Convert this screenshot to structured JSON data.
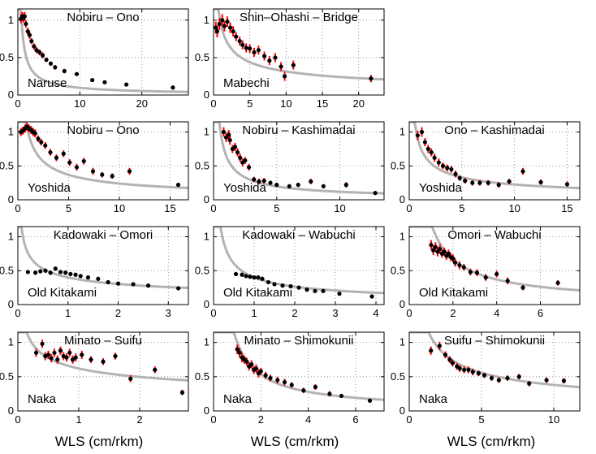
{
  "figure": {
    "xlabel_text": "WLS (cm/rkm)",
    "colors": {
      "point": "#000000",
      "errorbar": "#ff0000",
      "fit": "#b3b3b3",
      "grid": "#7f7f7f",
      "frame": "#000000"
    }
  },
  "chart_data": [
    {
      "type": "scatter",
      "title": "Nobiru – Ono",
      "river": "Naruse",
      "xlim": [
        0,
        27.5
      ],
      "ylim": [
        0,
        1.15
      ],
      "xticks": [
        0,
        10,
        20
      ],
      "yticks": [
        0,
        0.5,
        1
      ],
      "fit_k": 0.65,
      "fit_p": 0.83,
      "points": [
        [
          0.5,
          1.02,
          0.06
        ],
        [
          0.7,
          1.05,
          0.06
        ],
        [
          0.9,
          1.03,
          0.06
        ],
        [
          1.1,
          1.05,
          0.06
        ],
        [
          1.3,
          0.95,
          0.05
        ],
        [
          1.6,
          0.85,
          0.05
        ],
        [
          1.9,
          0.8,
          0.05
        ],
        [
          2.2,
          0.72,
          0.04
        ],
        [
          2.6,
          0.65,
          0.04
        ],
        [
          3.0,
          0.6,
          0.04
        ],
        [
          3.5,
          0.57,
          0.04
        ],
        [
          4.0,
          0.53,
          0.04
        ],
        [
          4.6,
          0.47,
          0.03
        ],
        [
          5.3,
          0.42,
          0.03
        ],
        [
          6.0,
          0.37,
          0.03
        ],
        [
          7.5,
          0.32,
          0.03
        ],
        [
          9.5,
          0.28,
          0.02
        ],
        [
          12.0,
          0.2,
          0.02
        ],
        [
          14.0,
          0.17,
          0.02
        ],
        [
          17.5,
          0.14,
          0.02
        ],
        [
          25.0,
          0.1,
          0.02
        ]
      ]
    },
    {
      "type": "scatter",
      "title": "Shin–Ohashi – Bridge",
      "river": "Mabechi",
      "xlim": [
        0,
        23.5
      ],
      "ylim": [
        0,
        1.15
      ],
      "xticks": [
        0,
        5,
        10,
        15,
        20
      ],
      "yticks": [
        0,
        0.5,
        1
      ],
      "fit_k": 0.95,
      "fit_p": 0.48,
      "points": [
        [
          0.3,
          0.9,
          0.08
        ],
        [
          0.5,
          0.85,
          0.08
        ],
        [
          0.8,
          0.95,
          0.08
        ],
        [
          1.2,
          1.0,
          0.08
        ],
        [
          1.5,
          0.92,
          0.07
        ],
        [
          1.9,
          0.98,
          0.07
        ],
        [
          2.3,
          0.9,
          0.07
        ],
        [
          2.7,
          0.85,
          0.07
        ],
        [
          3.1,
          0.78,
          0.06
        ],
        [
          3.6,
          0.72,
          0.06
        ],
        [
          4.0,
          0.67,
          0.06
        ],
        [
          4.5,
          0.63,
          0.06
        ],
        [
          5.0,
          0.62,
          0.06
        ],
        [
          5.6,
          0.57,
          0.06
        ],
        [
          6.2,
          0.6,
          0.06
        ],
        [
          7.0,
          0.52,
          0.06
        ],
        [
          7.7,
          0.46,
          0.06
        ],
        [
          8.5,
          0.5,
          0.06
        ],
        [
          9.3,
          0.38,
          0.06
        ],
        [
          9.8,
          0.25,
          0.06
        ],
        [
          11.0,
          0.4,
          0.06
        ],
        [
          21.7,
          0.22,
          0.05
        ]
      ]
    },
    {
      "type": "scatter",
      "title": "Nobiru – Ono",
      "river": "Yoshida",
      "xlim": [
        0,
        16.8
      ],
      "ylim": [
        0,
        1.15
      ],
      "xticks": [
        0,
        5,
        10,
        15
      ],
      "yticks": [
        0,
        0.5,
        1
      ],
      "fit_k": 1.0,
      "fit_p": 0.62,
      "points": [
        [
          0.3,
          1.0,
          0.06
        ],
        [
          0.5,
          1.02,
          0.06
        ],
        [
          0.7,
          1.05,
          0.06
        ],
        [
          0.9,
          1.08,
          0.06
        ],
        [
          1.1,
          1.05,
          0.06
        ],
        [
          1.3,
          1.03,
          0.06
        ],
        [
          1.5,
          1.0,
          0.06
        ],
        [
          1.7,
          0.98,
          0.06
        ],
        [
          2.0,
          0.9,
          0.05
        ],
        [
          2.3,
          0.85,
          0.05
        ],
        [
          2.7,
          0.8,
          0.05
        ],
        [
          3.2,
          0.7,
          0.05
        ],
        [
          3.8,
          0.62,
          0.05
        ],
        [
          4.5,
          0.68,
          0.05
        ],
        [
          5.1,
          0.55,
          0.05
        ],
        [
          5.8,
          0.48,
          0.05
        ],
        [
          6.5,
          0.57,
          0.05
        ],
        [
          7.4,
          0.42,
          0.05
        ],
        [
          8.3,
          0.37,
          0.04
        ],
        [
          9.3,
          0.35,
          0.04
        ],
        [
          11.0,
          0.42,
          0.05
        ],
        [
          15.8,
          0.22,
          0.03
        ]
      ]
    },
    {
      "type": "scatter",
      "title": "Nobiru – Kashimadai",
      "river": "Yoshida",
      "xlim": [
        0,
        13.5
      ],
      "ylim": [
        0,
        1.15
      ],
      "xticks": [
        0,
        5,
        10
      ],
      "yticks": [
        0,
        0.5,
        1
      ],
      "fit_k": 0.65,
      "fit_p": 0.74,
      "points": [
        [
          0.8,
          1.0,
          0.07
        ],
        [
          1.0,
          0.92,
          0.07
        ],
        [
          1.2,
          0.96,
          0.07
        ],
        [
          1.3,
          0.88,
          0.07
        ],
        [
          1.5,
          0.75,
          0.06
        ],
        [
          1.7,
          0.78,
          0.06
        ],
        [
          1.9,
          0.7,
          0.06
        ],
        [
          2.1,
          0.62,
          0.06
        ],
        [
          2.3,
          0.55,
          0.06
        ],
        [
          2.5,
          0.58,
          0.05
        ],
        [
          2.8,
          0.48,
          0.05
        ],
        [
          3.2,
          0.3,
          0.04
        ],
        [
          3.6,
          0.27,
          0.04
        ],
        [
          4.0,
          0.28,
          0.04
        ],
        [
          4.5,
          0.25,
          0.03
        ],
        [
          5.0,
          0.22,
          0.03
        ],
        [
          6.0,
          0.2,
          0.03
        ],
        [
          6.7,
          0.22,
          0.03
        ],
        [
          7.7,
          0.27,
          0.04
        ],
        [
          8.7,
          0.2,
          0.03
        ],
        [
          10.5,
          0.22,
          0.04
        ],
        [
          12.8,
          0.1,
          0.02
        ]
      ]
    },
    {
      "type": "scatter",
      "title": "Ono – Kashimadai",
      "river": "Yoshida",
      "xlim": [
        0,
        16.2
      ],
      "ylim": [
        0,
        1.15
      ],
      "xticks": [
        0,
        5,
        10,
        15
      ],
      "yticks": [
        0,
        0.5,
        1
      ],
      "fit_k": 0.8,
      "fit_p": 0.55,
      "points": [
        [
          0.8,
          0.95,
          0.07
        ],
        [
          1.2,
          1.0,
          0.07
        ],
        [
          1.5,
          0.85,
          0.06
        ],
        [
          1.8,
          0.75,
          0.06
        ],
        [
          2.1,
          0.7,
          0.06
        ],
        [
          2.4,
          0.62,
          0.06
        ],
        [
          2.8,
          0.55,
          0.06
        ],
        [
          3.2,
          0.5,
          0.05
        ],
        [
          3.6,
          0.47,
          0.05
        ],
        [
          4.0,
          0.45,
          0.05
        ],
        [
          4.4,
          0.38,
          0.05
        ],
        [
          4.8,
          0.32,
          0.04
        ],
        [
          5.3,
          0.28,
          0.04
        ],
        [
          6.0,
          0.25,
          0.04
        ],
        [
          6.7,
          0.25,
          0.04
        ],
        [
          7.5,
          0.25,
          0.04
        ],
        [
          8.5,
          0.22,
          0.04
        ],
        [
          9.5,
          0.27,
          0.04
        ],
        [
          10.8,
          0.42,
          0.05
        ],
        [
          12.5,
          0.26,
          0.04
        ],
        [
          15.0,
          0.23,
          0.04
        ]
      ]
    },
    {
      "type": "scatter",
      "title": "Kadowaki – Omori",
      "river": "Old Kitakami",
      "xlim": [
        0,
        3.4
      ],
      "ylim": [
        0,
        1.15
      ],
      "xticks": [
        0,
        1,
        2,
        3
      ],
      "yticks": [
        0,
        0.5,
        1
      ],
      "fit_k": 0.4,
      "fit_p": 0.4,
      "points": [
        [
          0.2,
          0.48,
          0.03
        ],
        [
          0.35,
          0.47,
          0.03
        ],
        [
          0.45,
          0.49,
          0.03
        ],
        [
          0.55,
          0.5,
          0.03
        ],
        [
          0.65,
          0.47,
          0.03
        ],
        [
          0.75,
          0.53,
          0.03
        ],
        [
          0.85,
          0.48,
          0.03
        ],
        [
          0.95,
          0.47,
          0.03
        ],
        [
          1.05,
          0.45,
          0.03
        ],
        [
          1.15,
          0.44,
          0.03
        ],
        [
          1.25,
          0.42,
          0.03
        ],
        [
          1.4,
          0.4,
          0.03
        ],
        [
          1.6,
          0.38,
          0.03
        ],
        [
          1.8,
          0.33,
          0.02
        ],
        [
          2.0,
          0.31,
          0.02
        ],
        [
          2.3,
          0.3,
          0.02
        ],
        [
          2.6,
          0.28,
          0.02
        ],
        [
          3.2,
          0.24,
          0.02
        ]
      ]
    },
    {
      "type": "scatter",
      "title": "Kadowaki – Wabuchi",
      "river": "Old Kitakami",
      "xlim": [
        0,
        4.2
      ],
      "ylim": [
        0,
        1.15
      ],
      "xticks": [
        0,
        1,
        2,
        3,
        4
      ],
      "yticks": [
        0,
        0.5,
        1
      ],
      "fit_k": 0.4,
      "fit_p": 0.6,
      "points": [
        [
          0.55,
          0.45,
          0.03
        ],
        [
          0.7,
          0.44,
          0.03
        ],
        [
          0.8,
          0.42,
          0.03
        ],
        [
          0.9,
          0.41,
          0.03
        ],
        [
          1.0,
          0.4,
          0.03
        ],
        [
          1.1,
          0.4,
          0.03
        ],
        [
          1.2,
          0.38,
          0.03
        ],
        [
          1.35,
          0.33,
          0.02
        ],
        [
          1.5,
          0.3,
          0.02
        ],
        [
          1.7,
          0.28,
          0.02
        ],
        [
          1.9,
          0.27,
          0.02
        ],
        [
          2.1,
          0.25,
          0.02
        ],
        [
          2.3,
          0.22,
          0.02
        ],
        [
          2.5,
          0.2,
          0.02
        ],
        [
          2.7,
          0.2,
          0.02
        ],
        [
          3.1,
          0.16,
          0.02
        ],
        [
          3.9,
          0.12,
          0.02
        ]
      ]
    },
    {
      "type": "scatter",
      "title": "Omori – Wabuchi",
      "river": "Old Kitakami",
      "xlim": [
        0,
        7.8
      ],
      "ylim": [
        0,
        1.15
      ],
      "xticks": [
        0,
        2,
        4,
        6
      ],
      "yticks": [
        0,
        0.5,
        1
      ],
      "fit_k": 1.2,
      "fit_p": 0.85,
      "points": [
        [
          1.0,
          0.88,
          0.07
        ],
        [
          1.1,
          0.8,
          0.07
        ],
        [
          1.2,
          0.85,
          0.07
        ],
        [
          1.3,
          0.78,
          0.07
        ],
        [
          1.4,
          0.82,
          0.07
        ],
        [
          1.5,
          0.75,
          0.06
        ],
        [
          1.6,
          0.78,
          0.06
        ],
        [
          1.7,
          0.72,
          0.06
        ],
        [
          1.8,
          0.75,
          0.06
        ],
        [
          1.9,
          0.7,
          0.06
        ],
        [
          2.0,
          0.68,
          0.06
        ],
        [
          2.1,
          0.62,
          0.06
        ],
        [
          2.3,
          0.58,
          0.06
        ],
        [
          2.5,
          0.55,
          0.05
        ],
        [
          2.8,
          0.48,
          0.05
        ],
        [
          3.1,
          0.47,
          0.05
        ],
        [
          3.5,
          0.4,
          0.05
        ],
        [
          4.0,
          0.45,
          0.05
        ],
        [
          4.5,
          0.35,
          0.05
        ],
        [
          5.2,
          0.25,
          0.04
        ],
        [
          6.8,
          0.32,
          0.04
        ]
      ]
    },
    {
      "type": "scatter",
      "title": "Minato – Suifu",
      "river": "Naka",
      "xlim": [
        0,
        2.8
      ],
      "ylim": [
        0,
        1.15
      ],
      "xticks": [
        0,
        1,
        2
      ],
      "yticks": [
        0,
        0.5,
        1
      ],
      "fit_k": 0.62,
      "fit_p": 0.32,
      "points": [
        [
          0.3,
          0.85,
          0.06
        ],
        [
          0.4,
          0.98,
          0.06
        ],
        [
          0.45,
          0.8,
          0.06
        ],
        [
          0.5,
          0.82,
          0.06
        ],
        [
          0.55,
          0.77,
          0.06
        ],
        [
          0.6,
          0.85,
          0.06
        ],
        [
          0.65,
          0.75,
          0.06
        ],
        [
          0.7,
          0.88,
          0.06
        ],
        [
          0.75,
          0.8,
          0.06
        ],
        [
          0.8,
          0.78,
          0.06
        ],
        [
          0.85,
          0.85,
          0.06
        ],
        [
          0.9,
          0.75,
          0.06
        ],
        [
          0.95,
          0.78,
          0.06
        ],
        [
          1.05,
          0.82,
          0.06
        ],
        [
          1.2,
          0.75,
          0.05
        ],
        [
          1.4,
          0.72,
          0.05
        ],
        [
          1.6,
          0.8,
          0.05
        ],
        [
          1.85,
          0.47,
          0.05
        ],
        [
          2.25,
          0.6,
          0.05
        ],
        [
          2.7,
          0.27,
          0.04
        ]
      ]
    },
    {
      "type": "scatter",
      "title": "Minato – Shimokunii",
      "river": "Naka",
      "xlim": [
        0,
        7.2
      ],
      "ylim": [
        0,
        1.15
      ],
      "xticks": [
        0,
        2,
        4,
        6
      ],
      "yticks": [
        0,
        0.5,
        1
      ],
      "fit_k": 1.0,
      "fit_p": 0.92,
      "points": [
        [
          1.0,
          0.9,
          0.07
        ],
        [
          1.1,
          0.85,
          0.07
        ],
        [
          1.2,
          0.78,
          0.07
        ],
        [
          1.3,
          0.75,
          0.06
        ],
        [
          1.4,
          0.72,
          0.06
        ],
        [
          1.5,
          0.65,
          0.06
        ],
        [
          1.6,
          0.68,
          0.06
        ],
        [
          1.7,
          0.6,
          0.06
        ],
        [
          1.8,
          0.62,
          0.06
        ],
        [
          1.9,
          0.55,
          0.06
        ],
        [
          2.0,
          0.58,
          0.05
        ],
        [
          2.2,
          0.52,
          0.05
        ],
        [
          2.4,
          0.48,
          0.05
        ],
        [
          2.7,
          0.45,
          0.05
        ],
        [
          3.0,
          0.42,
          0.05
        ],
        [
          3.3,
          0.38,
          0.04
        ],
        [
          3.8,
          0.3,
          0.04
        ],
        [
          4.3,
          0.35,
          0.04
        ],
        [
          4.9,
          0.25,
          0.04
        ],
        [
          5.4,
          0.22,
          0.03
        ],
        [
          6.6,
          0.15,
          0.03
        ]
      ]
    },
    {
      "type": "scatter",
      "title": "Suifu – Shimokunii",
      "river": "Naka",
      "xlim": [
        0,
        11.8
      ],
      "ylim": [
        0,
        1.15
      ],
      "xticks": [
        0,
        5,
        10
      ],
      "yticks": [
        0,
        0.5,
        1
      ],
      "fit_k": 1.35,
      "fit_p": 0.55,
      "points": [
        [
          1.5,
          0.88,
          0.06
        ],
        [
          2.1,
          0.95,
          0.06
        ],
        [
          2.5,
          0.82,
          0.05
        ],
        [
          2.8,
          0.75,
          0.05
        ],
        [
          3.0,
          0.7,
          0.05
        ],
        [
          3.3,
          0.65,
          0.05
        ],
        [
          3.5,
          0.62,
          0.05
        ],
        [
          3.8,
          0.6,
          0.05
        ],
        [
          4.1,
          0.6,
          0.05
        ],
        [
          4.4,
          0.57,
          0.05
        ],
        [
          4.8,
          0.55,
          0.04
        ],
        [
          5.2,
          0.52,
          0.04
        ],
        [
          5.7,
          0.48,
          0.04
        ],
        [
          6.2,
          0.45,
          0.04
        ],
        [
          6.8,
          0.48,
          0.04
        ],
        [
          7.6,
          0.5,
          0.04
        ],
        [
          8.3,
          0.4,
          0.04
        ],
        [
          9.5,
          0.45,
          0.04
        ],
        [
          10.7,
          0.44,
          0.04
        ]
      ]
    }
  ]
}
